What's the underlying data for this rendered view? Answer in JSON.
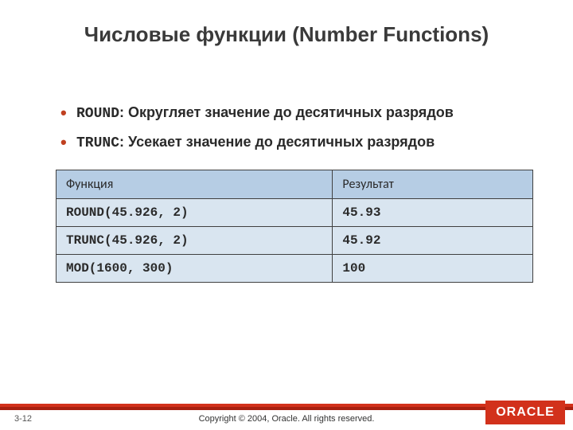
{
  "title": "Числовые функции (Number Functions)",
  "bullets": [
    {
      "code": "ROUND",
      "text": ": Округляет значение до десятичных разрядов"
    },
    {
      "code": "TRUNC",
      "text": ": Усекает значение до десятичных разрядов"
    }
  ],
  "table": {
    "columns": [
      "Функция",
      "Результат"
    ],
    "rows": [
      [
        "ROUND(45.926, 2)",
        "45.93"
      ],
      [
        "TRUNC(45.926, 2)",
        "45.92"
      ],
      [
        "MOD(1600, 300)",
        "100"
      ]
    ],
    "col_widths": [
      "58%",
      "42%"
    ],
    "header_bg": "#b6cde4",
    "cell_bg": "#d9e5f0",
    "border_color": "#404040"
  },
  "footer": {
    "slide_number": "3-12",
    "copyright": "Copyright © 2004, Oracle.  All rights reserved.",
    "logo_text": "ORACLE"
  },
  "colors": {
    "bullet_color": "#c04020",
    "red_bar": "#d2311b",
    "red_bar_shadow": "#a81f0f"
  }
}
